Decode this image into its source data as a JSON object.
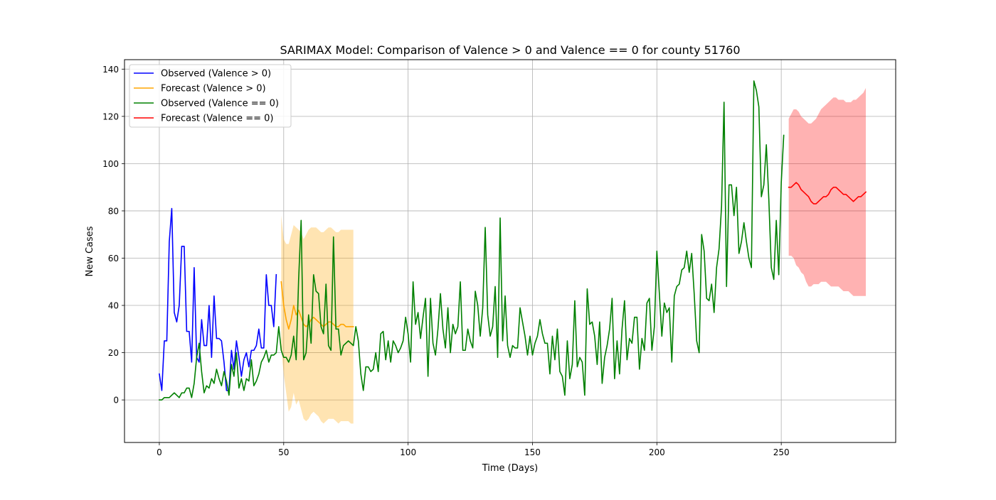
{
  "chart_data": {
    "type": "line",
    "title": "SARIMAX Model: Comparison of Valence > 0 and Valence == 0 for county 51760",
    "xlabel": "Time (Days)",
    "ylabel": "New Cases",
    "xlim": [
      -14,
      296
    ],
    "ylim": [
      -18,
      144
    ],
    "xticks": [
      0,
      50,
      100,
      150,
      200,
      250
    ],
    "yticks": [
      0,
      20,
      40,
      60,
      80,
      100,
      120,
      140
    ],
    "grid": true,
    "legend_position": "top-left",
    "series": [
      {
        "name": "Observed (Valence > 0)",
        "color": "#0000ff",
        "x_start": 0,
        "values": [
          11,
          4,
          25,
          25,
          67,
          81,
          37,
          33,
          40,
          65,
          65,
          29,
          29,
          16,
          56,
          18,
          16,
          34,
          23,
          23,
          40,
          18,
          44,
          26,
          26,
          25,
          16,
          4,
          4,
          21,
          13,
          25,
          18,
          10,
          17,
          20,
          14,
          21,
          21,
          23,
          30,
          22,
          22,
          53,
          40,
          40,
          31,
          53
        ]
      },
      {
        "name": "Forecast (Valence > 0)",
        "color": "#ffa500",
        "band_color": "#ffa500",
        "x_start": 49,
        "values": [
          50,
          40,
          34,
          30,
          34,
          40,
          36,
          38,
          35,
          32,
          31,
          32,
          34,
          35,
          34,
          33,
          32,
          31,
          32,
          33,
          33,
          32,
          31,
          31,
          32,
          32,
          31,
          31,
          31,
          31
        ],
        "lower": [
          22,
          11,
          3,
          -5,
          -3,
          3,
          -2,
          0,
          -4,
          -8,
          -9,
          -8,
          -6,
          -5,
          -6,
          -7,
          -9,
          -10,
          -9,
          -8,
          -8,
          -8,
          -9,
          -10,
          -9,
          -9,
          -9,
          -9,
          -10,
          -10
        ],
        "upper": [
          78,
          68,
          66,
          66,
          70,
          74,
          73,
          72,
          71,
          68,
          70,
          72,
          73,
          73,
          73,
          72,
          71,
          71,
          72,
          73,
          73,
          72,
          71,
          71,
          72,
          72,
          72,
          72,
          72,
          72
        ]
      },
      {
        "name": "Observed (Valence == 0)",
        "color": "#008000",
        "x_start": 0,
        "values": [
          0,
          0,
          1,
          1,
          1,
          2,
          3,
          2,
          1,
          3,
          3,
          5,
          5,
          1,
          7,
          18,
          24,
          12,
          3,
          6,
          5,
          9,
          7,
          13,
          9,
          6,
          12,
          8,
          2,
          15,
          10,
          20,
          5,
          9,
          4,
          9,
          8,
          17,
          6,
          8,
          11,
          16,
          18,
          21,
          16,
          19,
          19,
          20,
          31,
          21,
          18,
          18,
          16,
          19,
          27,
          17,
          51,
          76,
          17,
          20,
          36,
          24,
          53,
          46,
          45,
          31,
          28,
          49,
          23,
          21,
          69,
          30,
          30,
          19,
          23,
          24,
          25,
          24,
          23,
          31,
          25,
          11,
          4,
          14,
          14,
          12,
          13,
          20,
          12,
          28,
          29,
          17,
          25,
          16,
          25,
          23,
          20,
          22,
          25,
          35,
          28,
          16,
          50,
          32,
          37,
          26,
          35,
          43,
          10,
          43,
          24,
          19,
          30,
          45,
          30,
          22,
          39,
          20,
          32,
          28,
          31,
          50,
          21,
          21,
          30,
          25,
          22,
          46,
          40,
          27,
          39,
          73,
          36,
          27,
          31,
          48,
          18,
          77,
          25,
          44,
          23,
          18,
          23,
          22,
          22,
          39,
          33,
          27,
          19,
          27,
          19,
          24,
          27,
          34,
          28,
          24,
          24,
          11,
          27,
          17,
          30,
          12,
          10,
          2,
          25,
          9,
          15,
          42,
          14,
          18,
          16,
          2,
          47,
          32,
          33,
          27,
          15,
          33,
          7,
          18,
          23,
          30,
          43,
          9,
          25,
          11,
          30,
          42,
          17,
          26,
          24,
          35,
          35,
          13,
          26,
          21,
          41,
          43,
          21,
          31,
          63,
          45,
          27,
          41,
          37,
          39,
          16,
          44,
          48,
          49,
          55,
          56,
          63,
          54,
          62,
          45,
          25,
          20,
          70,
          63,
          43,
          42,
          49,
          37,
          56,
          64,
          82,
          126,
          48,
          91,
          91,
          78,
          90,
          62,
          67,
          75,
          67,
          60,
          56,
          135,
          131,
          124,
          86,
          91,
          108,
          85,
          56,
          51,
          76,
          53,
          92,
          112
        ]
      },
      {
        "name": "Forecast (Valence == 0)",
        "color": "#ff0000",
        "band_color": "#ff0000",
        "x_start": 253,
        "values": [
          90,
          90,
          91,
          92,
          91,
          89,
          88,
          87,
          86,
          84,
          83,
          83,
          84,
          85,
          86,
          86,
          87,
          89,
          90,
          90,
          89,
          88,
          87,
          87,
          86,
          85,
          84,
          85,
          86,
          86,
          87,
          88
        ],
        "lower": [
          61,
          61,
          60,
          57,
          56,
          54,
          53,
          50,
          48,
          48,
          49,
          49,
          49,
          50,
          50,
          50,
          49,
          48,
          48,
          48,
          48,
          47,
          46,
          46,
          46,
          45,
          44,
          44,
          44,
          44,
          44,
          44
        ],
        "upper": [
          119,
          121,
          123,
          123,
          122,
          120,
          119,
          118,
          117,
          117,
          118,
          119,
          121,
          123,
          124,
          125,
          126,
          127,
          128,
          128,
          127,
          127,
          127,
          126,
          126,
          126,
          127,
          127,
          128,
          129,
          130,
          132
        ]
      }
    ]
  }
}
